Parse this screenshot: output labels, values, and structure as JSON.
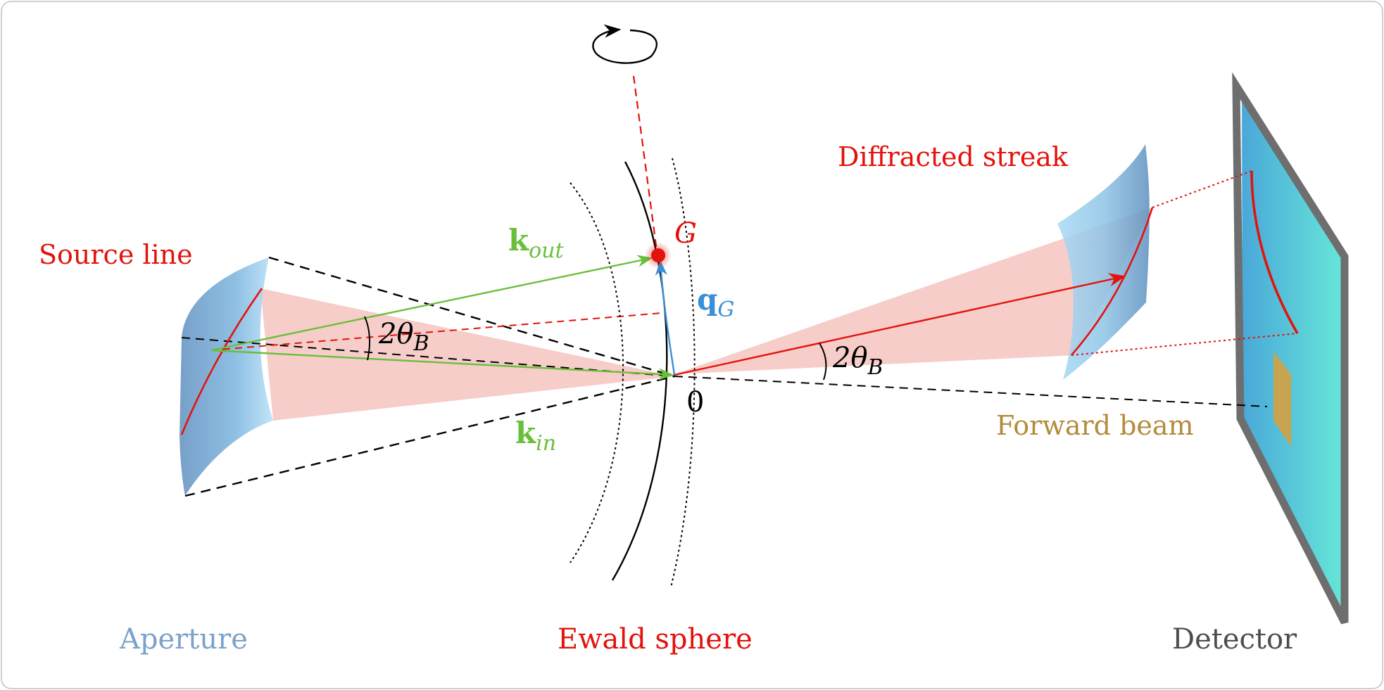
{
  "labels": {
    "source_line": "Source line",
    "diffracted_streak": "Diffracted streak",
    "forward_beam": "Forward beam",
    "aperture": "Aperture",
    "ewald_sphere": "Ewald sphere",
    "detector": "Detector",
    "origin": "0",
    "g_point": "G",
    "k_out_main": "k",
    "k_out_sub": "out",
    "k_in_main": "k",
    "k_in_sub": "in",
    "q_main": "q",
    "q_sub": "G",
    "angle_left_main": "2θ",
    "angle_left_sub": "B",
    "angle_right_main": "2θ",
    "angle_right_sub": "B"
  },
  "colors": {
    "red": "#e3120b",
    "green": "#6abf3a",
    "blue": "#3a8fd6",
    "aperture_text": "#7ba2c8",
    "forward_beam": "#b38b3a",
    "detector_text": "#4d4d4d",
    "cone_fill": "#f4b8b4",
    "detector_frame": "#6e6e6e",
    "detector_face_left": "#4aa8d8",
    "detector_face_right": "#66e6d8"
  },
  "icons": {
    "rotation": "rotation-arrow-icon"
  }
}
